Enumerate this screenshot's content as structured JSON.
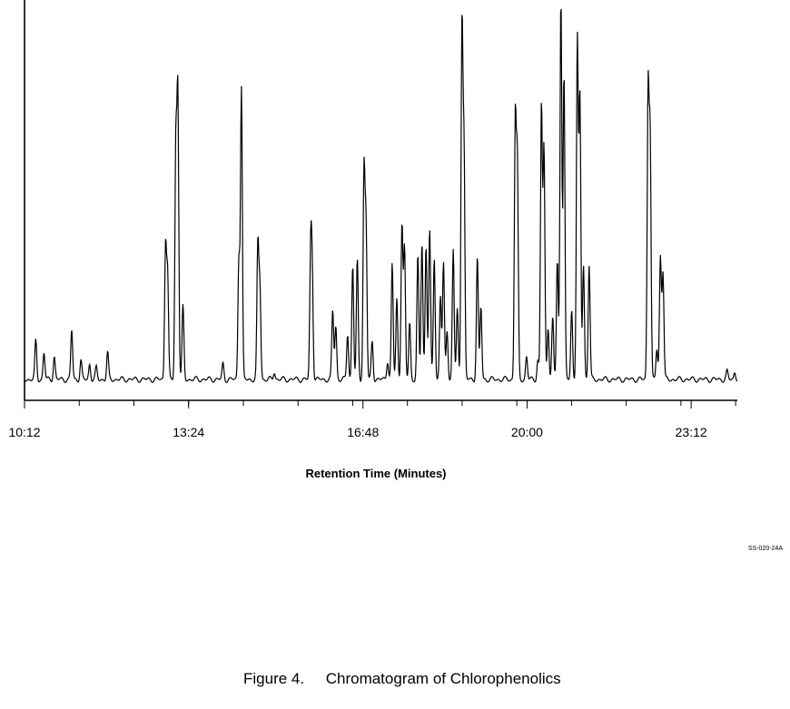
{
  "chart_data": {
    "type": "line",
    "title": "",
    "xlabel": "Retention Time (Minutes)",
    "ylabel": "",
    "x_ticks": [
      {
        "label": "10:12",
        "value": 10.2
      },
      {
        "label": "13:24",
        "value": 13.4
      },
      {
        "label": "16:48",
        "value": 16.8
      },
      {
        "label": "20:00",
        "value": 20.0
      },
      {
        "label": "23:12",
        "value": 23.2
      }
    ],
    "xlim": [
      10.2,
      24.1
    ],
    "ylim": [
      0,
      100
    ],
    "grid": false,
    "legend": "none",
    "baseline": 2,
    "peaks": [
      {
        "x": 10.42,
        "y": 10
      },
      {
        "x": 10.58,
        "y": 7
      },
      {
        "x": 10.78,
        "y": 6
      },
      {
        "x": 11.12,
        "y": 13
      },
      {
        "x": 11.3,
        "y": 5
      },
      {
        "x": 11.47,
        "y": 4
      },
      {
        "x": 11.6,
        "y": 3
      },
      {
        "x": 11.82,
        "y": 7
      },
      {
        "x": 12.95,
        "y": 35
      },
      {
        "x": 12.99,
        "y": 27
      },
      {
        "x": 13.15,
        "y": 60
      },
      {
        "x": 13.19,
        "y": 74
      },
      {
        "x": 13.29,
        "y": 19
      },
      {
        "x": 14.07,
        "y": 4
      },
      {
        "x": 14.38,
        "y": 32
      },
      {
        "x": 14.43,
        "y": 76
      },
      {
        "x": 14.75,
        "y": 35
      },
      {
        "x": 14.79,
        "y": 24
      },
      {
        "x": 15.07,
        "y": 2
      },
      {
        "x": 15.78,
        "y": 32
      },
      {
        "x": 15.81,
        "y": 26
      },
      {
        "x": 16.21,
        "y": 18
      },
      {
        "x": 16.27,
        "y": 14
      },
      {
        "x": 16.5,
        "y": 12
      },
      {
        "x": 16.6,
        "y": 30
      },
      {
        "x": 16.69,
        "y": 31
      },
      {
        "x": 16.82,
        "y": 54
      },
      {
        "x": 16.86,
        "y": 40
      },
      {
        "x": 16.98,
        "y": 10
      },
      {
        "x": 17.28,
        "y": 5
      },
      {
        "x": 17.37,
        "y": 30
      },
      {
        "x": 17.46,
        "y": 21
      },
      {
        "x": 17.56,
        "y": 41
      },
      {
        "x": 17.61,
        "y": 34
      },
      {
        "x": 17.71,
        "y": 15
      },
      {
        "x": 17.87,
        "y": 32
      },
      {
        "x": 17.95,
        "y": 36
      },
      {
        "x": 18.03,
        "y": 35
      },
      {
        "x": 18.1,
        "y": 39
      },
      {
        "x": 18.19,
        "y": 32
      },
      {
        "x": 18.31,
        "y": 22
      },
      {
        "x": 18.37,
        "y": 30
      },
      {
        "x": 18.44,
        "y": 13
      },
      {
        "x": 18.56,
        "y": 34
      },
      {
        "x": 18.64,
        "y": 18
      },
      {
        "x": 18.73,
        "y": 92
      },
      {
        "x": 18.77,
        "y": 58
      },
      {
        "x": 19.03,
        "y": 32
      },
      {
        "x": 19.1,
        "y": 19
      },
      {
        "x": 19.77,
        "y": 67
      },
      {
        "x": 19.81,
        "y": 55
      },
      {
        "x": 19.99,
        "y": 6
      },
      {
        "x": 20.21,
        "y": 5
      },
      {
        "x": 20.28,
        "y": 72
      },
      {
        "x": 20.33,
        "y": 60
      },
      {
        "x": 20.41,
        "y": 14
      },
      {
        "x": 20.5,
        "y": 16
      },
      {
        "x": 20.59,
        "y": 31
      },
      {
        "x": 20.66,
        "y": 100
      },
      {
        "x": 20.72,
        "y": 80
      },
      {
        "x": 20.87,
        "y": 18
      },
      {
        "x": 20.98,
        "y": 89
      },
      {
        "x": 21.03,
        "y": 74
      },
      {
        "x": 21.1,
        "y": 30
      },
      {
        "x": 21.21,
        "y": 30
      },
      {
        "x": 22.36,
        "y": 75
      },
      {
        "x": 22.4,
        "y": 62
      },
      {
        "x": 22.53,
        "y": 8
      },
      {
        "x": 22.6,
        "y": 32
      },
      {
        "x": 22.65,
        "y": 28
      },
      {
        "x": 23.9,
        "y": 2
      },
      {
        "x": 24.05,
        "y": 2
      }
    ]
  },
  "figure_code": "SS-020-24A",
  "caption": {
    "number": "Figure 4.",
    "text": "Chromatogram of Chlorophenolics"
  }
}
